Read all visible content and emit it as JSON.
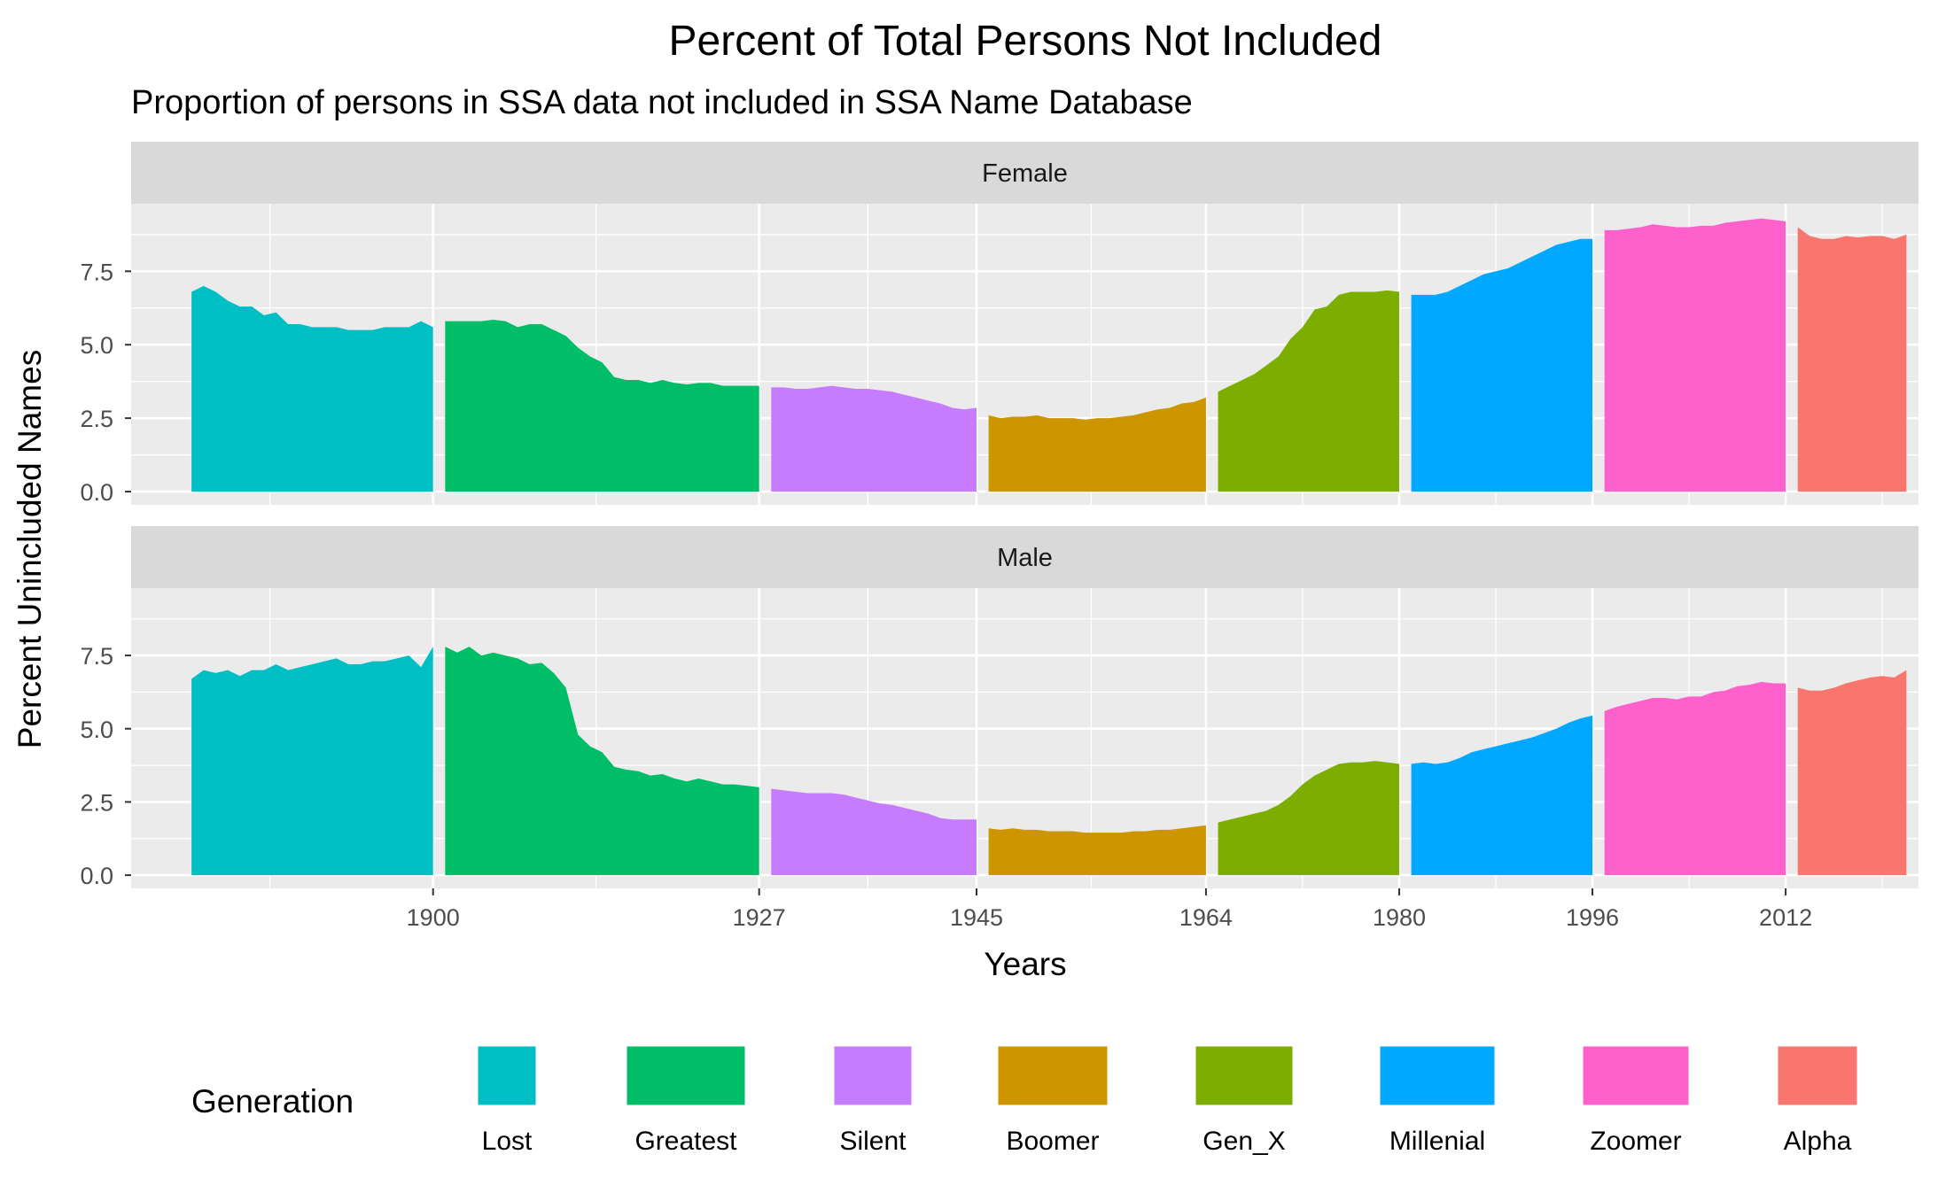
{
  "chart_data": {
    "type": "area",
    "title": "Percent of Total Persons Not Included",
    "subtitle": "Proportion of persons in SSA data not included in SSA Name Database",
    "xlabel": "Years",
    "ylabel": "Percent Unincluded Names",
    "xlim": [
      1875,
      2023
    ],
    "ylim": [
      -0.45,
      9.8
    ],
    "x_ticks": [
      1900,
      1927,
      1945,
      1964,
      1980,
      1996,
      2012
    ],
    "x_tick_labels": [
      "1900",
      "1927",
      "1945",
      "1964",
      "1980",
      "1996",
      "2012"
    ],
    "y_ticks": [
      0.0,
      2.5,
      5.0,
      7.5
    ],
    "y_tick_labels": [
      "0.0",
      "2.5",
      "5.0",
      "7.5"
    ],
    "grid": true,
    "legend_title": "Generation",
    "legend_position": "bottom",
    "generations": [
      {
        "name": "Lost",
        "color": "#00BFC4",
        "start": 1880,
        "end": 1900
      },
      {
        "name": "Greatest",
        "color": "#00BE67",
        "start": 1901,
        "end": 1927
      },
      {
        "name": "Silent",
        "color": "#C77CFF",
        "start": 1928,
        "end": 1945
      },
      {
        "name": "Boomer",
        "color": "#CD9600",
        "start": 1946,
        "end": 1964
      },
      {
        "name": "Gen_X",
        "color": "#7CAE00",
        "start": 1965,
        "end": 1980
      },
      {
        "name": "Millenial",
        "color": "#00A9FF",
        "start": 1981,
        "end": 1996
      },
      {
        "name": "Zoomer",
        "color": "#FF61CC",
        "start": 1997,
        "end": 2012
      },
      {
        "name": "Alpha",
        "color": "#F8766D",
        "start": 2013,
        "end": 2022
      }
    ],
    "panels": [
      {
        "label": "Female",
        "series": [
          {
            "name": "Lost",
            "x": [
              1880,
              1881,
              1882,
              1883,
              1884,
              1885,
              1886,
              1887,
              1888,
              1889,
              1890,
              1891,
              1892,
              1893,
              1894,
              1895,
              1896,
              1897,
              1898,
              1899,
              1900
            ],
            "values": [
              6.8,
              7.0,
              6.8,
              6.5,
              6.3,
              6.3,
              6.0,
              6.1,
              5.7,
              5.7,
              5.6,
              5.6,
              5.6,
              5.5,
              5.5,
              5.5,
              5.6,
              5.6,
              5.6,
              5.8,
              5.6
            ]
          },
          {
            "name": "Greatest",
            "x": [
              1901,
              1902,
              1903,
              1904,
              1905,
              1906,
              1907,
              1908,
              1909,
              1910,
              1911,
              1912,
              1913,
              1914,
              1915,
              1916,
              1917,
              1918,
              1919,
              1920,
              1921,
              1922,
              1923,
              1924,
              1925,
              1926,
              1927
            ],
            "values": [
              5.8,
              5.8,
              5.8,
              5.8,
              5.85,
              5.8,
              5.6,
              5.7,
              5.7,
              5.5,
              5.3,
              4.9,
              4.6,
              4.4,
              3.9,
              3.8,
              3.8,
              3.7,
              3.8,
              3.7,
              3.65,
              3.7,
              3.7,
              3.6,
              3.6,
              3.6,
              3.6
            ]
          },
          {
            "name": "Silent",
            "x": [
              1928,
              1929,
              1930,
              1931,
              1932,
              1933,
              1934,
              1935,
              1936,
              1937,
              1938,
              1939,
              1940,
              1941,
              1942,
              1943,
              1944,
              1945
            ],
            "values": [
              3.55,
              3.55,
              3.5,
              3.5,
              3.55,
              3.6,
              3.55,
              3.5,
              3.5,
              3.45,
              3.4,
              3.3,
              3.2,
              3.1,
              3.0,
              2.85,
              2.8,
              2.85
            ]
          },
          {
            "name": "Boomer",
            "x": [
              1946,
              1947,
              1948,
              1949,
              1950,
              1951,
              1952,
              1953,
              1954,
              1955,
              1956,
              1957,
              1958,
              1959,
              1960,
              1961,
              1962,
              1963,
              1964
            ],
            "values": [
              2.6,
              2.5,
              2.55,
              2.55,
              2.6,
              2.5,
              2.5,
              2.5,
              2.45,
              2.5,
              2.5,
              2.55,
              2.6,
              2.7,
              2.8,
              2.85,
              3.0,
              3.05,
              3.2
            ]
          },
          {
            "name": "Gen_X",
            "x": [
              1965,
              1966,
              1967,
              1968,
              1969,
              1970,
              1971,
              1972,
              1973,
              1974,
              1975,
              1976,
              1977,
              1978,
              1979,
              1980
            ],
            "values": [
              3.4,
              3.6,
              3.8,
              4.0,
              4.3,
              4.6,
              5.2,
              5.6,
              6.2,
              6.3,
              6.7,
              6.8,
              6.8,
              6.8,
              6.85,
              6.8
            ]
          },
          {
            "name": "Millenial",
            "x": [
              1981,
              1982,
              1983,
              1984,
              1985,
              1986,
              1987,
              1988,
              1989,
              1990,
              1991,
              1992,
              1993,
              1994,
              1995,
              1996
            ],
            "values": [
              6.7,
              6.7,
              6.7,
              6.8,
              7.0,
              7.2,
              7.4,
              7.5,
              7.6,
              7.8,
              8.0,
              8.2,
              8.4,
              8.5,
              8.6,
              8.6
            ]
          },
          {
            "name": "Zoomer",
            "x": [
              1997,
              1998,
              1999,
              2000,
              2001,
              2002,
              2003,
              2004,
              2005,
              2006,
              2007,
              2008,
              2009,
              2010,
              2011,
              2012
            ],
            "values": [
              8.9,
              8.9,
              8.95,
              9.0,
              9.1,
              9.05,
              9.0,
              9.0,
              9.05,
              9.05,
              9.15,
              9.2,
              9.25,
              9.3,
              9.25,
              9.2
            ]
          },
          {
            "name": "Alpha",
            "x": [
              2013,
              2014,
              2015,
              2016,
              2017,
              2018,
              2019,
              2020,
              2021,
              2022
            ],
            "values": [
              9.0,
              8.7,
              8.6,
              8.6,
              8.7,
              8.65,
              8.7,
              8.7,
              8.6,
              8.75
            ]
          }
        ]
      },
      {
        "label": "Male",
        "series": [
          {
            "name": "Lost",
            "x": [
              1880,
              1881,
              1882,
              1883,
              1884,
              1885,
              1886,
              1887,
              1888,
              1889,
              1890,
              1891,
              1892,
              1893,
              1894,
              1895,
              1896,
              1897,
              1898,
              1899,
              1900
            ],
            "values": [
              6.7,
              7.0,
              6.9,
              7.0,
              6.8,
              7.0,
              7.0,
              7.2,
              7.0,
              7.1,
              7.2,
              7.3,
              7.4,
              7.2,
              7.2,
              7.3,
              7.3,
              7.4,
              7.5,
              7.1,
              7.8
            ]
          },
          {
            "name": "Greatest",
            "x": [
              1901,
              1902,
              1903,
              1904,
              1905,
              1906,
              1907,
              1908,
              1909,
              1910,
              1911,
              1912,
              1913,
              1914,
              1915,
              1916,
              1917,
              1918,
              1919,
              1920,
              1921,
              1922,
              1923,
              1924,
              1925,
              1926,
              1927
            ],
            "values": [
              7.8,
              7.6,
              7.8,
              7.5,
              7.6,
              7.5,
              7.4,
              7.2,
              7.25,
              6.9,
              6.4,
              4.8,
              4.4,
              4.2,
              3.7,
              3.6,
              3.55,
              3.4,
              3.45,
              3.3,
              3.2,
              3.3,
              3.2,
              3.1,
              3.1,
              3.05,
              3.0
            ]
          },
          {
            "name": "Silent",
            "x": [
              1928,
              1929,
              1930,
              1931,
              1932,
              1933,
              1934,
              1935,
              1936,
              1937,
              1938,
              1939,
              1940,
              1941,
              1942,
              1943,
              1944,
              1945
            ],
            "values": [
              2.95,
              2.9,
              2.85,
              2.8,
              2.8,
              2.8,
              2.75,
              2.65,
              2.55,
              2.45,
              2.4,
              2.3,
              2.2,
              2.1,
              1.95,
              1.9,
              1.9,
              1.9
            ]
          },
          {
            "name": "Boomer",
            "x": [
              1946,
              1947,
              1948,
              1949,
              1950,
              1951,
              1952,
              1953,
              1954,
              1955,
              1956,
              1957,
              1958,
              1959,
              1960,
              1961,
              1962,
              1963,
              1964
            ],
            "values": [
              1.6,
              1.55,
              1.6,
              1.55,
              1.55,
              1.5,
              1.5,
              1.5,
              1.45,
              1.45,
              1.45,
              1.45,
              1.5,
              1.5,
              1.55,
              1.55,
              1.6,
              1.65,
              1.7
            ]
          },
          {
            "name": "Gen_X",
            "x": [
              1965,
              1966,
              1967,
              1968,
              1969,
              1970,
              1971,
              1972,
              1973,
              1974,
              1975,
              1976,
              1977,
              1978,
              1979,
              1980
            ],
            "values": [
              1.8,
              1.9,
              2.0,
              2.1,
              2.2,
              2.4,
              2.7,
              3.1,
              3.4,
              3.6,
              3.8,
              3.85,
              3.85,
              3.9,
              3.85,
              3.8
            ]
          },
          {
            "name": "Millenial",
            "x": [
              1981,
              1982,
              1983,
              1984,
              1985,
              1986,
              1987,
              1988,
              1989,
              1990,
              1991,
              1992,
              1993,
              1994,
              1995,
              1996
            ],
            "values": [
              3.8,
              3.85,
              3.8,
              3.85,
              4.0,
              4.2,
              4.3,
              4.4,
              4.5,
              4.6,
              4.7,
              4.85,
              5.0,
              5.2,
              5.35,
              5.45
            ]
          },
          {
            "name": "Zoomer",
            "x": [
              1997,
              1998,
              1999,
              2000,
              2001,
              2002,
              2003,
              2004,
              2005,
              2006,
              2007,
              2008,
              2009,
              2010,
              2011,
              2012
            ],
            "values": [
              5.6,
              5.75,
              5.85,
              5.95,
              6.05,
              6.05,
              6.0,
              6.1,
              6.1,
              6.25,
              6.3,
              6.45,
              6.5,
              6.6,
              6.55,
              6.55
            ]
          },
          {
            "name": "Alpha",
            "x": [
              2013,
              2014,
              2015,
              2016,
              2017,
              2018,
              2019,
              2020,
              2021,
              2022
            ],
            "values": [
              6.4,
              6.3,
              6.3,
              6.4,
              6.55,
              6.65,
              6.75,
              6.8,
              6.75,
              7.0
            ]
          }
        ]
      }
    ]
  }
}
